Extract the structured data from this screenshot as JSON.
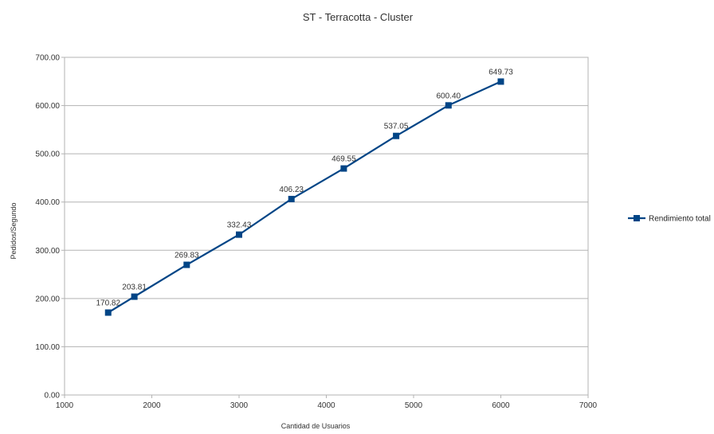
{
  "chart_data": {
    "type": "line",
    "title": "ST - Terracotta - Cluster",
    "xlabel": "Cantidad de Usuarios",
    "ylabel": "Pedidos/Segundo",
    "xlim": [
      1000,
      7000
    ],
    "ylim": [
      0,
      700
    ],
    "x_ticks": [
      1000,
      2000,
      3000,
      4000,
      5000,
      6000,
      7000
    ],
    "y_ticks": [
      0,
      100,
      200,
      300,
      400,
      500,
      600,
      700
    ],
    "y_tick_labels": [
      "0.00",
      "100.00",
      "200.00",
      "300.00",
      "400.00",
      "500.00",
      "600.00",
      "700.00"
    ],
    "grid": "horizontal",
    "legend_position": "right",
    "series": [
      {
        "name": "Rendimiento total",
        "color": "#004586",
        "marker": "square",
        "x": [
          1500,
          1800,
          2400,
          3000,
          3600,
          4200,
          4800,
          5400,
          6000
        ],
        "y": [
          170.82,
          203.81,
          269.83,
          332.43,
          406.23,
          469.55,
          537.05,
          600.4,
          649.73
        ],
        "labels": [
          "170.82",
          "203.81",
          "269.83",
          "332.43",
          "406.23",
          "469.55",
          "537.05",
          "600.40",
          "649.73"
        ]
      }
    ]
  }
}
